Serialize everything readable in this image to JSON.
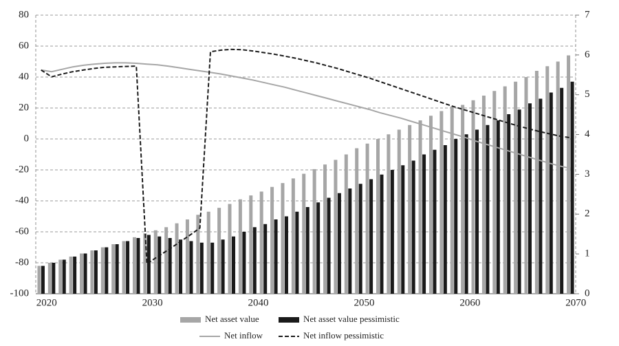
{
  "chart_data": {
    "type": "bar",
    "categories": [
      "2020",
      null,
      null,
      null,
      null,
      null,
      null,
      null,
      null,
      null,
      "2030",
      null,
      null,
      null,
      null,
      null,
      null,
      null,
      null,
      null,
      "2040",
      null,
      null,
      null,
      null,
      null,
      null,
      null,
      null,
      null,
      "2050",
      null,
      null,
      null,
      null,
      null,
      null,
      null,
      null,
      null,
      "2060",
      null,
      null,
      null,
      null,
      null,
      null,
      null,
      null,
      null,
      "2070"
    ],
    "ylim": [
      -100,
      80
    ],
    "yticks": [
      -100,
      -80,
      -60,
      -40,
      -20,
      0,
      20,
      40,
      60,
      80
    ],
    "y2lim": [
      0,
      7
    ],
    "y2ticks": [
      0,
      1,
      2,
      3,
      4,
      5,
      6,
      7
    ],
    "grid": true,
    "series": [
      {
        "name": "Net asset value",
        "type": "bar",
        "color": "#a6a6a6",
        "values": [
          -82,
          -80,
          -78,
          -76,
          -74,
          -72,
          -70,
          -68,
          -66,
          -63.5,
          -61,
          -59,
          -57,
          -54.5,
          -52,
          -49,
          -47,
          -44.5,
          -42,
          -39,
          -36.5,
          -34,
          -31,
          -28.5,
          -25.5,
          -22.5,
          -19.5,
          -16.5,
          -13.5,
          -10,
          -6,
          -3,
          0,
          3,
          6,
          9,
          12,
          15,
          18,
          21,
          22,
          25,
          28,
          31,
          34,
          37,
          40,
          44,
          47,
          50,
          54
        ]
      },
      {
        "name": "Net asset value pessimistic",
        "type": "bar",
        "color": "#1a1a1a",
        "values": [
          -82,
          -80,
          -78,
          -76,
          -74,
          -72,
          -70,
          -68,
          -66,
          -64,
          -62,
          -63,
          -64,
          -65,
          -66,
          -67,
          -67,
          -65,
          -63,
          -60,
          -57,
          -55,
          -52,
          -50,
          -47,
          -44,
          -41,
          -38,
          -35,
          -32,
          -29,
          -26,
          -23,
          -20,
          -17,
          -14,
          -10,
          -7,
          -4,
          0,
          3,
          6,
          9,
          12,
          16,
          19,
          23,
          26,
          30,
          33,
          37
        ]
      },
      {
        "name": "Net inflow",
        "type": "line",
        "axis": "y2",
        "color": "#a6a6a6",
        "values": [
          5.62,
          5.58,
          5.64,
          5.7,
          5.74,
          5.77,
          5.79,
          5.8,
          5.8,
          5.79,
          5.77,
          5.75,
          5.72,
          5.68,
          5.64,
          5.6,
          5.56,
          5.52,
          5.47,
          5.42,
          5.37,
          5.31,
          5.25,
          5.19,
          5.12,
          5.05,
          4.98,
          4.91,
          4.84,
          4.77,
          4.7,
          4.63,
          4.55,
          4.48,
          4.41,
          4.33,
          4.25,
          4.17,
          4.09,
          4.01,
          3.93,
          3.84,
          3.76,
          3.68,
          3.6,
          3.52,
          3.44,
          3.36,
          3.28,
          3.21,
          3.15
        ]
      },
      {
        "name": "Net inflow pessimistic",
        "type": "line",
        "axis": "y2",
        "color": "#1a1a1a",
        "dashed": true,
        "values": [
          5.62,
          5.45,
          5.52,
          5.58,
          5.62,
          5.66,
          5.69,
          5.7,
          5.71,
          5.72,
          0.75,
          0.93,
          1.1,
          1.28,
          1.46,
          1.65,
          6.08,
          6.12,
          6.14,
          6.13,
          6.1,
          6.06,
          6.02,
          5.97,
          5.92,
          5.86,
          5.8,
          5.73,
          5.66,
          5.58,
          5.5,
          5.42,
          5.33,
          5.24,
          5.15,
          5.06,
          4.97,
          4.88,
          4.79,
          4.7,
          4.62,
          4.54,
          4.46,
          4.38,
          4.3,
          4.22,
          4.15,
          4.08,
          4.02,
          3.96,
          3.92
        ]
      }
    ]
  }
}
